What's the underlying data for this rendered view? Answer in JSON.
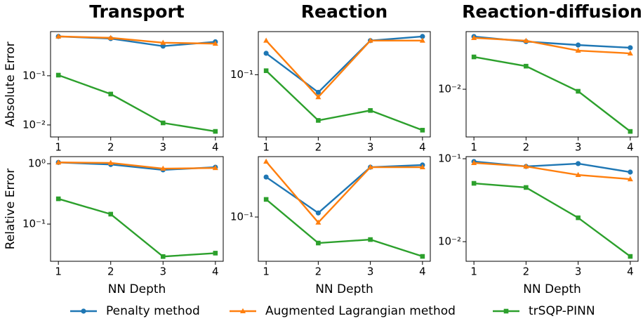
{
  "legend": [
    {
      "name": "Penalty method",
      "color": "#1f77b4",
      "marker": "circle"
    },
    {
      "name": "Augmented Lagrangian method",
      "color": "#ff7f0e",
      "marker": "triangle"
    },
    {
      "name": "trSQP-PINN",
      "color": "#2ca02c",
      "marker": "square"
    }
  ],
  "chart_data": [
    {
      "type": "line",
      "title": "Transport",
      "ylabel": "Absolute Error",
      "log_y": true,
      "x": [
        1,
        2,
        3,
        4
      ],
      "xlim": [
        0.85,
        4.15
      ],
      "xticks": [
        1,
        2,
        3,
        4
      ],
      "ylim": [
        0.0057,
        0.79
      ],
      "yticks": [
        {
          "value": 0.1,
          "label": "10⁻¹"
        },
        {
          "value": 0.01,
          "label": "10⁻²"
        }
      ],
      "series": [
        {
          "values": [
            0.63,
            0.57,
            0.4,
            0.49
          ]
        },
        {
          "values": [
            0.63,
            0.59,
            0.47,
            0.45
          ]
        },
        {
          "values": [
            0.103,
            0.0425,
            0.011,
            0.0074
          ]
        }
      ]
    },
    {
      "type": "line",
      "title": "Reaction",
      "log_y": true,
      "x": [
        1,
        2,
        3,
        4
      ],
      "xlim": [
        0.85,
        4.15
      ],
      "xticks": [
        1,
        2,
        3,
        4
      ],
      "ylim": [
        0.023,
        0.277
      ],
      "yticks": [
        {
          "value": 0.1,
          "label": "10⁻¹"
        }
      ],
      "series": [
        {
          "values": [
            0.166,
            0.066,
            0.224,
            0.247
          ]
        },
        {
          "values": [
            0.224,
            0.059,
            0.224,
            0.224
          ]
        },
        {
          "values": [
            0.11,
            0.034,
            0.043,
            0.027
          ]
        }
      ]
    },
    {
      "type": "line",
      "title": "Reaction-diffusion",
      "log_y": true,
      "x": [
        1,
        2,
        3,
        4
      ],
      "xlim": [
        0.85,
        4.15
      ],
      "xticks": [
        1,
        2,
        3,
        4
      ],
      "ylim": [
        0.003,
        0.0428
      ],
      "yticks": [
        {
          "value": 0.01,
          "label": "10⁻²"
        }
      ],
      "series": [
        {
          "values": [
            0.0378,
            0.0333,
            0.0305,
            0.0285
          ]
        },
        {
          "values": [
            0.0365,
            0.034,
            0.0265,
            0.0247
          ]
        },
        {
          "values": [
            0.0226,
            0.0179,
            0.0095,
            0.00345
          ]
        }
      ]
    },
    {
      "type": "line",
      "ylabel": "Relative Error",
      "xlabel": "NN Depth",
      "log_y": true,
      "x": [
        1,
        2,
        3,
        4
      ],
      "xlim": [
        0.85,
        4.15
      ],
      "xticks": [
        1,
        2,
        3,
        4
      ],
      "ylim": [
        0.0242,
        1.31
      ],
      "yticks": [
        {
          "value": 1,
          "label": "10⁰"
        },
        {
          "value": 0.1,
          "label": "10⁻¹"
        }
      ],
      "series": [
        {
          "values": [
            1.05,
            0.97,
            0.79,
            0.875
          ]
        },
        {
          "values": [
            1.05,
            1.03,
            0.83,
            0.85
          ]
        },
        {
          "values": [
            0.262,
            0.146,
            0.029,
            0.033
          ]
        }
      ]
    },
    {
      "type": "line",
      "xlabel": "NN Depth",
      "log_y": true,
      "x": [
        1,
        2,
        3,
        4
      ],
      "xlim": [
        0.85,
        4.15
      ],
      "xticks": [
        1,
        2,
        3,
        4
      ],
      "ylim": [
        0.0355,
        0.411
      ],
      "yticks": [
        {
          "value": 0.1,
          "label": "10⁻¹"
        }
      ],
      "series": [
        {
          "values": [
            0.255,
            0.11,
            0.321,
            0.338
          ]
        },
        {
          "values": [
            0.366,
            0.088,
            0.321,
            0.321
          ]
        },
        {
          "values": [
            0.151,
            0.0544,
            0.059,
            0.0398
          ]
        }
      ]
    },
    {
      "type": "line",
      "xlabel": "NN Depth",
      "log_y": true,
      "x": [
        1,
        2,
        3,
        4
      ],
      "xlim": [
        0.85,
        4.15
      ],
      "xticks": [
        1,
        2,
        3,
        4
      ],
      "ylim": [
        0.0058,
        0.106
      ],
      "yticks": [
        {
          "value": 0.1,
          "label": "10⁻¹"
        },
        {
          "value": 0.01,
          "label": "10⁻²"
        }
      ],
      "series": [
        {
          "values": [
            0.0925,
            0.0807,
            0.0873,
            0.069
          ]
        },
        {
          "values": [
            0.089,
            0.0807,
            0.0638,
            0.0567
          ]
        },
        {
          "values": [
            0.0505,
            0.045,
            0.0194,
            0.00664
          ]
        }
      ]
    }
  ]
}
